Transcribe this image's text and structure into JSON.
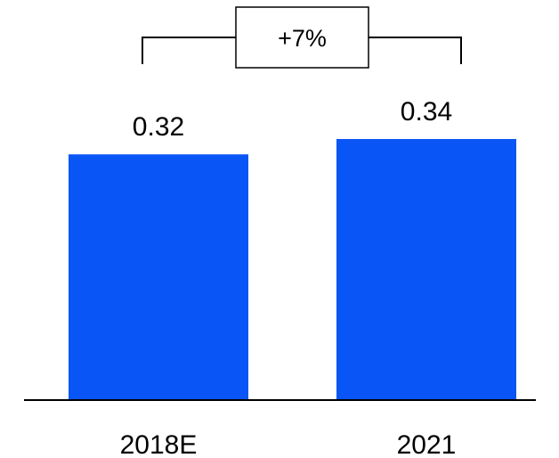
{
  "chart_data": {
    "type": "bar",
    "categories": [
      "2018E",
      "2021"
    ],
    "values": [
      0.32,
      0.34
    ],
    "data_labels": [
      "0.32",
      "0.34"
    ],
    "title": "",
    "xlabel": "",
    "ylabel": "",
    "ylim": [
      0,
      0.34
    ],
    "grid": false,
    "legend": "none",
    "bar_color": "#0a55f5",
    "annotation": {
      "text": "+7%",
      "from_category": "2018E",
      "to_category": "2021"
    }
  }
}
